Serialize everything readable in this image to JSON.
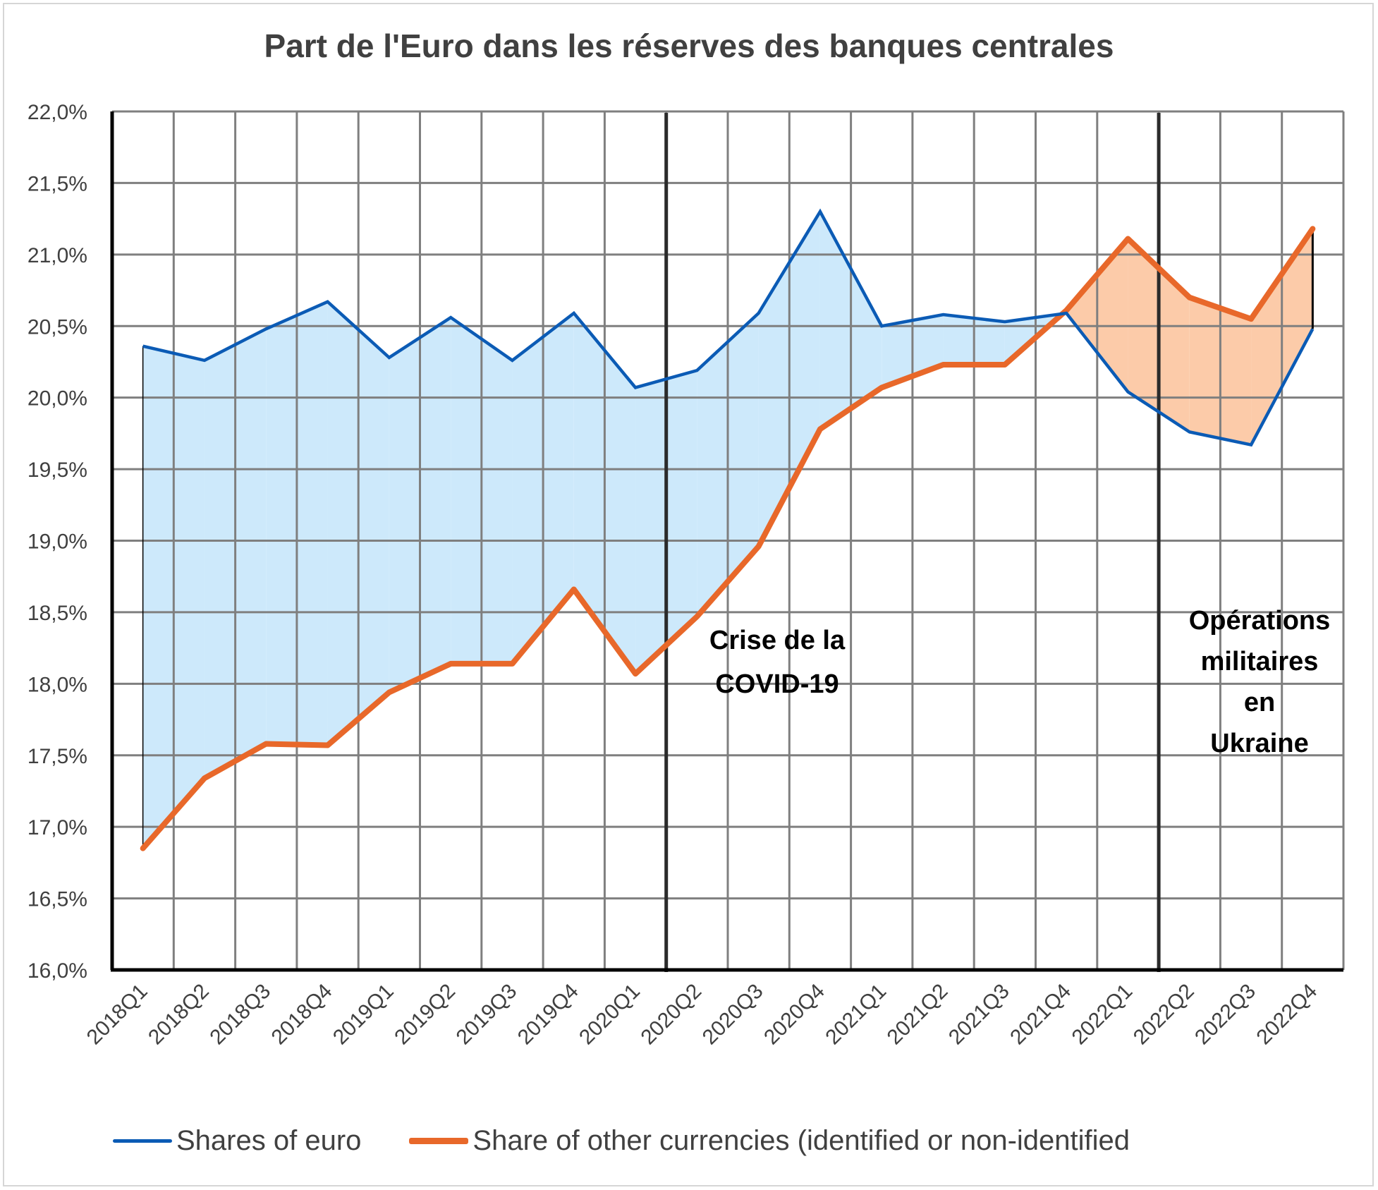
{
  "title": "Part de l'Euro dans les réserves des banques centrales",
  "annotations": {
    "covid": [
      "Crise de la",
      "COVID-19"
    ],
    "ukraine": [
      "Opérations",
      "militaires",
      "en",
      "Ukraine"
    ]
  },
  "legend": {
    "euro": "Shares of euro",
    "other": "Share of other currencies (identified or non-identified"
  },
  "colors": {
    "euro_line": "#0B5BB5",
    "other_line": "#E8682A",
    "fill_euro_above": "#CDE9FB",
    "fill_other_above": "#FCCBA9",
    "grid": "#7f7f7f",
    "axis": "#000000",
    "event_line": "#2b2b2b"
  },
  "chart_data": {
    "type": "line",
    "title": "Part de l'Euro dans les réserves des banques centrales",
    "xlabel": "",
    "ylabel": "",
    "ylim": [
      16.0,
      22.0
    ],
    "y_tick_step": 0.5,
    "y_tick_labels": [
      "16,0%",
      "16,5%",
      "17,0%",
      "17,5%",
      "18,0%",
      "18,5%",
      "19,0%",
      "19,5%",
      "20,0%",
      "20,5%",
      "21,0%",
      "21,5%",
      "22,0%"
    ],
    "grid": true,
    "legend_position": "bottom",
    "categories": [
      "2018Q1",
      "2018Q2",
      "2018Q3",
      "2018Q4",
      "2019Q1",
      "2019Q2",
      "2019Q3",
      "2019Q4",
      "2020Q1",
      "2020Q2",
      "2020Q3",
      "2020Q4",
      "2021Q1",
      "2021Q2",
      "2021Q3",
      "2021Q4",
      "2022Q1",
      "2022Q2",
      "2022Q3",
      "2022Q4"
    ],
    "series": [
      {
        "name": "Shares of euro",
        "values": [
          20.36,
          20.26,
          20.48,
          20.67,
          20.28,
          20.56,
          20.26,
          20.59,
          20.07,
          20.19,
          20.59,
          21.3,
          20.5,
          20.58,
          20.53,
          20.59,
          20.04,
          19.76,
          19.67,
          20.48
        ]
      },
      {
        "name": "Share of other currencies (identified or non-identified",
        "values": [
          16.85,
          17.34,
          17.58,
          17.57,
          17.94,
          18.14,
          18.14,
          18.66,
          18.07,
          18.47,
          18.96,
          19.78,
          20.07,
          20.23,
          20.23,
          20.61,
          21.11,
          20.7,
          20.55,
          21.18
        ]
      }
    ],
    "event_lines": [
      {
        "between": [
          "2020Q1",
          "2020Q2"
        ],
        "label": "Crise de la COVID-19"
      },
      {
        "between": [
          "2022Q1",
          "2022Q2"
        ],
        "label": "Opérations militaires en Ukraine"
      }
    ],
    "annotations": [
      "Crise de la COVID-19",
      "Opérations militaires en Ukraine"
    ]
  }
}
